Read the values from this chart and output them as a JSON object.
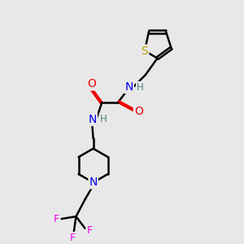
{
  "bg_color": "#e8e8e8",
  "atom_colors": {
    "S": "#b8a000",
    "N": "#0000ee",
    "O": "#ee0000",
    "F": "#ee00ee",
    "C": "#000000",
    "H": "#508080"
  },
  "bond_lw": 1.8,
  "font_size": 9,
  "dbo": 0.06
}
